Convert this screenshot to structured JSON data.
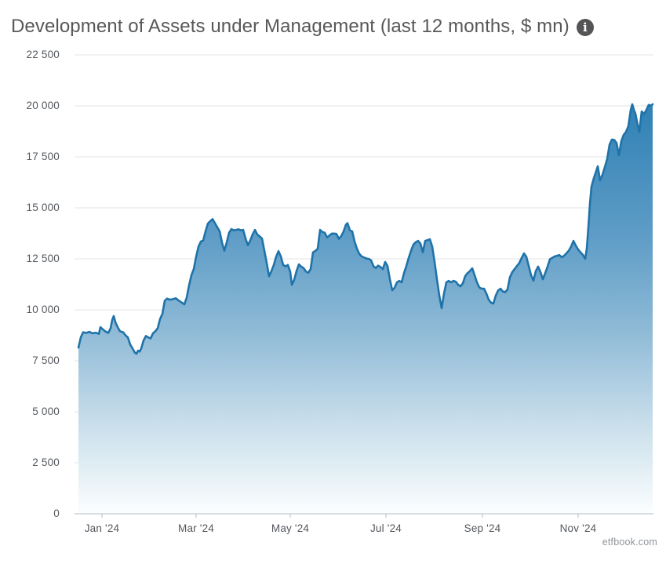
{
  "title": {
    "text": "Development of Assets under Management (last 12 months, $ mn)",
    "info_glyph": "i"
  },
  "watermark": "etfbook.com",
  "colors": {
    "line": "#1f73a9",
    "grid": "#e6e6e6",
    "axis": "#b3bdc7",
    "tick": "#b3bdc7",
    "axis_label": "#54585d",
    "title": "#58585a",
    "watermark": "#8e959c",
    "info_bg": "#545456",
    "area_gradient": [
      {
        "o": 0.0,
        "c": "#2b7ab1"
      },
      {
        "o": 0.14,
        "c": "#3584b7"
      },
      {
        "o": 0.4,
        "c": "#5f9dc7"
      },
      {
        "o": 0.6,
        "c": "#8ebad6"
      },
      {
        "o": 0.79,
        "c": "#c5dcea"
      },
      {
        "o": 0.88,
        "c": "#dcebf2"
      },
      {
        "o": 1.0,
        "c": "#fcfeff"
      }
    ]
  },
  "chart_data": {
    "type": "area",
    "title": "Development of Assets under Management (last 12 months, $ mn)",
    "legend": "none",
    "x_axis": {
      "unit": "day-offset across last 12 months",
      "range_days": [
        0,
        366
      ],
      "ticks": [
        {
          "label": "Jan '24",
          "day": 15
        },
        {
          "label": "Mar '24",
          "day": 75
        },
        {
          "label": "May '24",
          "day": 135
        },
        {
          "label": "Jul '24",
          "day": 196
        },
        {
          "label": "Sep '24",
          "day": 257.5
        },
        {
          "label": "Nov '24",
          "day": 318.5
        }
      ]
    },
    "y_axis": {
      "range": [
        0,
        22500
      ],
      "grid": true,
      "tick_values": [
        0,
        2500,
        5000,
        7500,
        10000,
        12500,
        15000,
        17500,
        20000,
        22500
      ],
      "tick_labels": [
        "0",
        "2 500",
        "5 000",
        "7 500",
        "10 000",
        "12 500",
        "15 000",
        "17 500",
        "20 000",
        "22 500"
      ]
    },
    "series": [
      {
        "name": "Assets under Management ($ mn)",
        "points": [
          [
            0,
            8150
          ],
          [
            1.5,
            8650
          ],
          [
            3,
            8900
          ],
          [
            5,
            8870
          ],
          [
            7,
            8920
          ],
          [
            9,
            8850
          ],
          [
            11,
            8880
          ],
          [
            13,
            8820
          ],
          [
            14,
            9150
          ],
          [
            15.5,
            9050
          ],
          [
            17,
            8950
          ],
          [
            19,
            8870
          ],
          [
            20.5,
            9100
          ],
          [
            21.5,
            9500
          ],
          [
            22.5,
            9700
          ],
          [
            23.5,
            9400
          ],
          [
            25,
            9150
          ],
          [
            26.5,
            8950
          ],
          [
            28.5,
            8900
          ],
          [
            30,
            8750
          ],
          [
            31.5,
            8650
          ],
          [
            33,
            8300
          ],
          [
            34.5,
            8100
          ],
          [
            36,
            7900
          ],
          [
            37,
            7850
          ],
          [
            38,
            8000
          ],
          [
            39,
            7950
          ],
          [
            40,
            8100
          ],
          [
            41.5,
            8500
          ],
          [
            43,
            8720
          ],
          [
            44.5,
            8650
          ],
          [
            46,
            8600
          ],
          [
            47.5,
            8850
          ],
          [
            49,
            8950
          ],
          [
            50.5,
            9100
          ],
          [
            52,
            9550
          ],
          [
            53.5,
            9800
          ],
          [
            55,
            10450
          ],
          [
            56.5,
            10550
          ],
          [
            58,
            10500
          ],
          [
            60,
            10520
          ],
          [
            62,
            10570
          ],
          [
            64,
            10450
          ],
          [
            66,
            10350
          ],
          [
            67.5,
            10270
          ],
          [
            69,
            10600
          ],
          [
            70.5,
            11200
          ],
          [
            72,
            11700
          ],
          [
            73.5,
            12000
          ],
          [
            75,
            12600
          ],
          [
            76.5,
            13100
          ],
          [
            78,
            13350
          ],
          [
            79.5,
            13400
          ],
          [
            81,
            13850
          ],
          [
            82.5,
            14230
          ],
          [
            84,
            14350
          ],
          [
            85.5,
            14450
          ],
          [
            87,
            14250
          ],
          [
            88.5,
            14050
          ],
          [
            90,
            13850
          ],
          [
            91.5,
            13300
          ],
          [
            93,
            12900
          ],
          [
            94.5,
            13300
          ],
          [
            96,
            13780
          ],
          [
            97.5,
            13960
          ],
          [
            99,
            13900
          ],
          [
            100.5,
            13920
          ],
          [
            102,
            13950
          ],
          [
            103.5,
            13900
          ],
          [
            105,
            13920
          ],
          [
            106.5,
            13500
          ],
          [
            108,
            13170
          ],
          [
            109.5,
            13400
          ],
          [
            111,
            13700
          ],
          [
            112.5,
            13920
          ],
          [
            114,
            13700
          ],
          [
            115.5,
            13600
          ],
          [
            117,
            13500
          ],
          [
            118.5,
            12900
          ],
          [
            120,
            12300
          ],
          [
            121.5,
            11650
          ],
          [
            123,
            11900
          ],
          [
            124.5,
            12200
          ],
          [
            126,
            12600
          ],
          [
            127.5,
            12880
          ],
          [
            129,
            12620
          ],
          [
            130.5,
            12200
          ],
          [
            132,
            12130
          ],
          [
            133.5,
            12200
          ],
          [
            135,
            11860
          ],
          [
            136,
            11230
          ],
          [
            137.5,
            11470
          ],
          [
            139,
            11900
          ],
          [
            140.5,
            12230
          ],
          [
            142,
            12120
          ],
          [
            143.5,
            12050
          ],
          [
            145,
            11880
          ],
          [
            146.5,
            11820
          ],
          [
            148,
            12000
          ],
          [
            149.5,
            12820
          ],
          [
            151,
            12890
          ],
          [
            152.5,
            13000
          ],
          [
            154,
            13920
          ],
          [
            155.5,
            13820
          ],
          [
            157,
            13780
          ],
          [
            158.5,
            13550
          ],
          [
            160,
            13650
          ],
          [
            161.5,
            13740
          ],
          [
            163,
            13740
          ],
          [
            164.5,
            13720
          ],
          [
            166,
            13480
          ],
          [
            167.5,
            13620
          ],
          [
            169,
            13850
          ],
          [
            170.5,
            14180
          ],
          [
            171.5,
            14250
          ],
          [
            173,
            13900
          ],
          [
            174.5,
            13850
          ],
          [
            176,
            13350
          ],
          [
            177.5,
            13000
          ],
          [
            179,
            12750
          ],
          [
            180.5,
            12620
          ],
          [
            182,
            12570
          ],
          [
            183.5,
            12520
          ],
          [
            185,
            12500
          ],
          [
            186.5,
            12430
          ],
          [
            188,
            12150
          ],
          [
            189.5,
            12050
          ],
          [
            191,
            12170
          ],
          [
            192.5,
            12100
          ],
          [
            194,
            12000
          ],
          [
            195.5,
            12350
          ],
          [
            197,
            12150
          ],
          [
            198.5,
            11500
          ],
          [
            200,
            10960
          ],
          [
            201.5,
            11080
          ],
          [
            203,
            11350
          ],
          [
            204.5,
            11420
          ],
          [
            206,
            11350
          ],
          [
            207.5,
            11800
          ],
          [
            209,
            12150
          ],
          [
            210.5,
            12550
          ],
          [
            212,
            12900
          ],
          [
            213.5,
            13200
          ],
          [
            215,
            13320
          ],
          [
            216.5,
            13380
          ],
          [
            218,
            13250
          ],
          [
            219.5,
            12820
          ],
          [
            221,
            13380
          ],
          [
            222.5,
            13420
          ],
          [
            224,
            13460
          ],
          [
            225.5,
            13100
          ],
          [
            227,
            12350
          ],
          [
            228.5,
            11500
          ],
          [
            230,
            10700
          ],
          [
            231.5,
            10080
          ],
          [
            233,
            10800
          ],
          [
            234.5,
            11350
          ],
          [
            236,
            11420
          ],
          [
            237.5,
            11350
          ],
          [
            239,
            11420
          ],
          [
            240.5,
            11380
          ],
          [
            242,
            11230
          ],
          [
            243.5,
            11150
          ],
          [
            245,
            11300
          ],
          [
            246.5,
            11650
          ],
          [
            248,
            11800
          ],
          [
            249.5,
            11900
          ],
          [
            251,
            12040
          ],
          [
            252.5,
            11700
          ],
          [
            254,
            11350
          ],
          [
            255.5,
            11100
          ],
          [
            257,
            11040
          ],
          [
            258.5,
            11040
          ],
          [
            260,
            10800
          ],
          [
            261.5,
            10500
          ],
          [
            263,
            10350
          ],
          [
            264.5,
            10310
          ],
          [
            266,
            10700
          ],
          [
            267.5,
            10950
          ],
          [
            269,
            11040
          ],
          [
            270.5,
            10900
          ],
          [
            272,
            10870
          ],
          [
            273.5,
            11000
          ],
          [
            275,
            11600
          ],
          [
            276.5,
            11850
          ],
          [
            278,
            12000
          ],
          [
            279.5,
            12150
          ],
          [
            281,
            12300
          ],
          [
            282.5,
            12550
          ],
          [
            284,
            12770
          ],
          [
            285.5,
            12600
          ],
          [
            287,
            12150
          ],
          [
            288.5,
            11700
          ],
          [
            290,
            11430
          ],
          [
            291.5,
            11900
          ],
          [
            293,
            12120
          ],
          [
            294.5,
            11850
          ],
          [
            296,
            11500
          ],
          [
            297.5,
            11800
          ],
          [
            299,
            12120
          ],
          [
            300.5,
            12480
          ],
          [
            302,
            12550
          ],
          [
            303.5,
            12620
          ],
          [
            305,
            12650
          ],
          [
            306.5,
            12690
          ],
          [
            308,
            12580
          ],
          [
            309.5,
            12650
          ],
          [
            311,
            12770
          ],
          [
            312.5,
            12900
          ],
          [
            314,
            13100
          ],
          [
            315.5,
            13380
          ],
          [
            317,
            13150
          ],
          [
            318.5,
            12960
          ],
          [
            320,
            12820
          ],
          [
            321.5,
            12700
          ],
          [
            323,
            12500
          ],
          [
            324,
            13000
          ],
          [
            325,
            14040
          ],
          [
            326,
            15200
          ],
          [
            327,
            16040
          ],
          [
            328.5,
            16460
          ],
          [
            330,
            16800
          ],
          [
            331,
            17040
          ],
          [
            332.5,
            16350
          ],
          [
            334,
            16620
          ],
          [
            335.5,
            17000
          ],
          [
            337,
            17400
          ],
          [
            338.5,
            18100
          ],
          [
            340,
            18350
          ],
          [
            341.5,
            18330
          ],
          [
            343,
            18180
          ],
          [
            344.5,
            17580
          ],
          [
            346,
            18270
          ],
          [
            347.5,
            18580
          ],
          [
            349,
            18730
          ],
          [
            350.5,
            19000
          ],
          [
            352,
            19800
          ],
          [
            353,
            20080
          ],
          [
            354,
            19820
          ],
          [
            355,
            19620
          ],
          [
            356.5,
            19050
          ],
          [
            357.5,
            18730
          ],
          [
            359,
            19730
          ],
          [
            360.5,
            19600
          ],
          [
            362,
            19800
          ],
          [
            363.5,
            20050
          ],
          [
            365,
            20020
          ],
          [
            366,
            20080
          ]
        ]
      }
    ]
  }
}
